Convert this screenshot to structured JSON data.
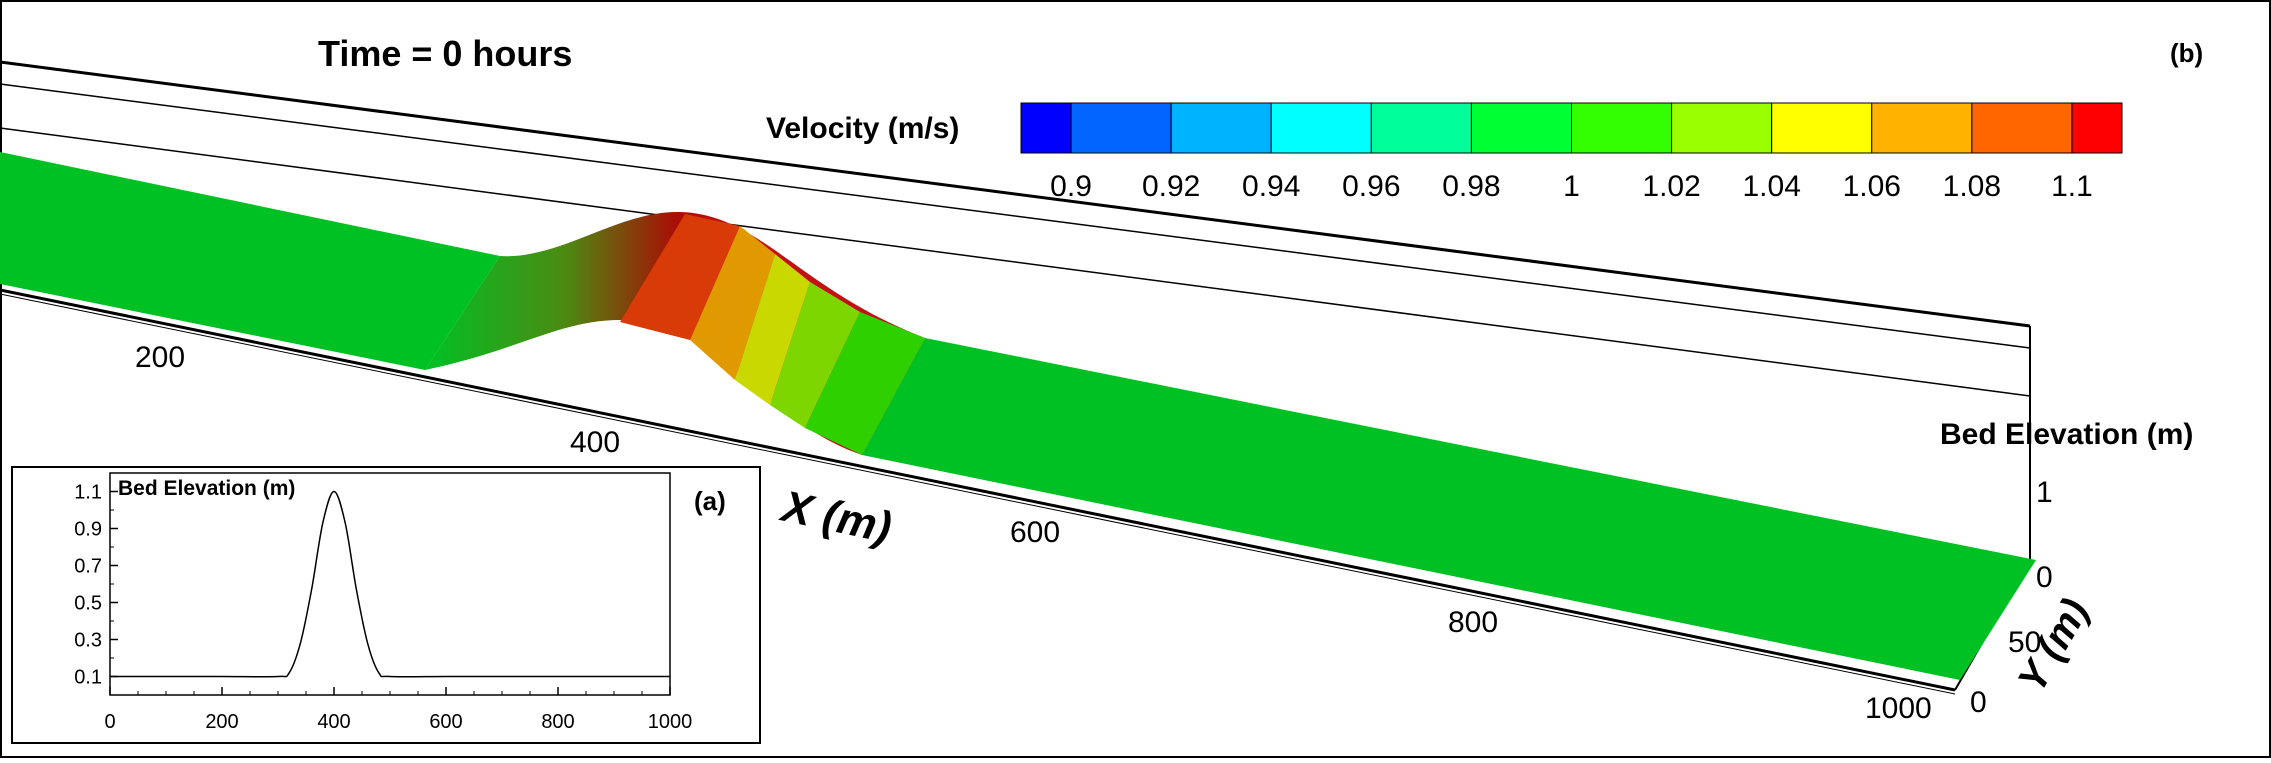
{
  "panel_b": {
    "label": "(b)",
    "time_text": "Time = 0 hours",
    "colorbar": {
      "title": "Velocity (m/s)",
      "colors": [
        "#0000ff",
        "#0066ff",
        "#00b3ff",
        "#00ffff",
        "#00ff99",
        "#00ff33",
        "#33ff00",
        "#99ff00",
        "#ffff00",
        "#ffb300",
        "#ff6600",
        "#ff0000"
      ],
      "tick_labels": [
        "0.9",
        "0.92",
        "0.94",
        "0.96",
        "0.98",
        "1",
        "1.02",
        "1.04",
        "1.06",
        "1.08",
        "1.1"
      ]
    },
    "x_axis": {
      "label": "X (m)",
      "ticks": [
        "200",
        "400",
        "600",
        "800",
        "1000"
      ]
    },
    "y_axis": {
      "label": "Y (m)",
      "ticks": [
        "0",
        "50",
        "0"
      ]
    },
    "z_axis": {
      "label": "Bed Elevation (m)",
      "ticks": [
        "1",
        "0"
      ]
    },
    "surface_colors": {
      "base": "#00c124",
      "crest": "#c00000"
    }
  },
  "chart_data": {
    "type": "line",
    "label": "(a)",
    "title": "Bed Elevation (m)",
    "xlabel": "",
    "ylabel": "",
    "xlim": [
      0,
      1000
    ],
    "ylim": [
      0,
      1.2
    ],
    "x_ticks": [
      "0",
      "200",
      "400",
      "600",
      "800",
      "1000"
    ],
    "y_ticks": [
      "0.1",
      "0.3",
      "0.5",
      "0.7",
      "0.9",
      "1.1"
    ],
    "x": [
      0,
      100,
      200,
      300,
      320,
      340,
      360,
      380,
      400,
      420,
      440,
      460,
      480,
      500,
      600,
      700,
      800,
      900,
      1000
    ],
    "y": [
      0.1,
      0.1,
      0.1,
      0.1,
      0.12,
      0.28,
      0.57,
      0.93,
      1.1,
      0.93,
      0.57,
      0.28,
      0.12,
      0.1,
      0.1,
      0.1,
      0.1,
      0.1,
      0.1
    ]
  }
}
